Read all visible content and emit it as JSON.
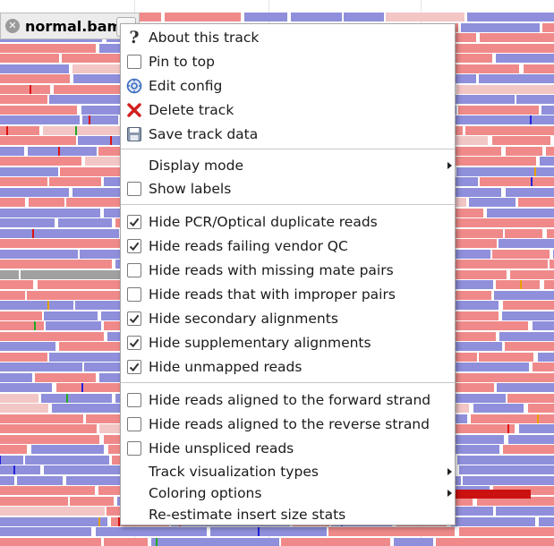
{
  "track": {
    "name": "normal.bam",
    "close_icon": "close-icon",
    "menu_icon": "chevron-down-icon"
  },
  "colors": {
    "forward_read": "#f08a8a",
    "reverse_read": "#8f8fdc",
    "low_mapq_read": "#f3c6c6",
    "unpaired_read": "#a0a0a0",
    "mismatch_green": "#22aa22",
    "mismatch_red": "#dd1111",
    "mismatch_blue": "#2222dd",
    "mismatch_orange": "#e8a000"
  },
  "menu": {
    "items": [
      {
        "name": "about-this-track",
        "label": "About this track",
        "icon": "question-icon"
      },
      {
        "name": "pin-to-top",
        "label": "Pin to top",
        "icon": "checkbox",
        "checked": false
      },
      {
        "name": "edit-config",
        "label": "Edit config",
        "icon": "settings-icon"
      },
      {
        "name": "delete-track",
        "label": "Delete track",
        "icon": "delete-icon"
      },
      {
        "name": "save-track-data",
        "label": "Save track data",
        "icon": "save-icon"
      },
      {
        "separator": true
      },
      {
        "name": "display-mode",
        "label": "Display mode",
        "submenu": true
      },
      {
        "name": "show-labels",
        "label": "Show labels",
        "icon": "checkbox",
        "checked": false
      },
      {
        "separator": true
      },
      {
        "name": "hide-pcr-duplicates",
        "label": "Hide PCR/Optical duplicate reads",
        "icon": "checkbox",
        "checked": true
      },
      {
        "name": "hide-failing-qc",
        "label": "Hide reads failing vendor QC",
        "icon": "checkbox",
        "checked": true
      },
      {
        "name": "hide-missing-mate",
        "label": "Hide reads with missing mate pairs",
        "icon": "checkbox",
        "checked": false
      },
      {
        "name": "hide-improper-pairs",
        "label": "Hide reads that with improper pairs",
        "icon": "checkbox",
        "checked": false
      },
      {
        "name": "hide-secondary",
        "label": "Hide secondary alignments",
        "icon": "checkbox",
        "checked": true
      },
      {
        "name": "hide-supplementary",
        "label": "Hide supplementary alignments",
        "icon": "checkbox",
        "checked": true
      },
      {
        "name": "hide-unmapped",
        "label": "Hide unmapped reads",
        "icon": "checkbox",
        "checked": true
      },
      {
        "separator": true
      },
      {
        "name": "hide-forward-strand",
        "label": "Hide reads aligned to the forward strand",
        "icon": "checkbox",
        "checked": false
      },
      {
        "name": "hide-reverse-strand",
        "label": "Hide reads aligned to the reverse strand",
        "icon": "checkbox",
        "checked": false
      },
      {
        "name": "hide-unspliced",
        "label": "Hide unspliced reads",
        "icon": "checkbox",
        "checked": false
      },
      {
        "name": "track-visualization-types",
        "label": "Track visualization types",
        "submenu": true
      },
      {
        "name": "coloring-options",
        "label": "Coloring options",
        "submenu": true
      },
      {
        "name": "re-estimate-insert-size",
        "label": "Re-estimate insert size stats"
      }
    ]
  }
}
